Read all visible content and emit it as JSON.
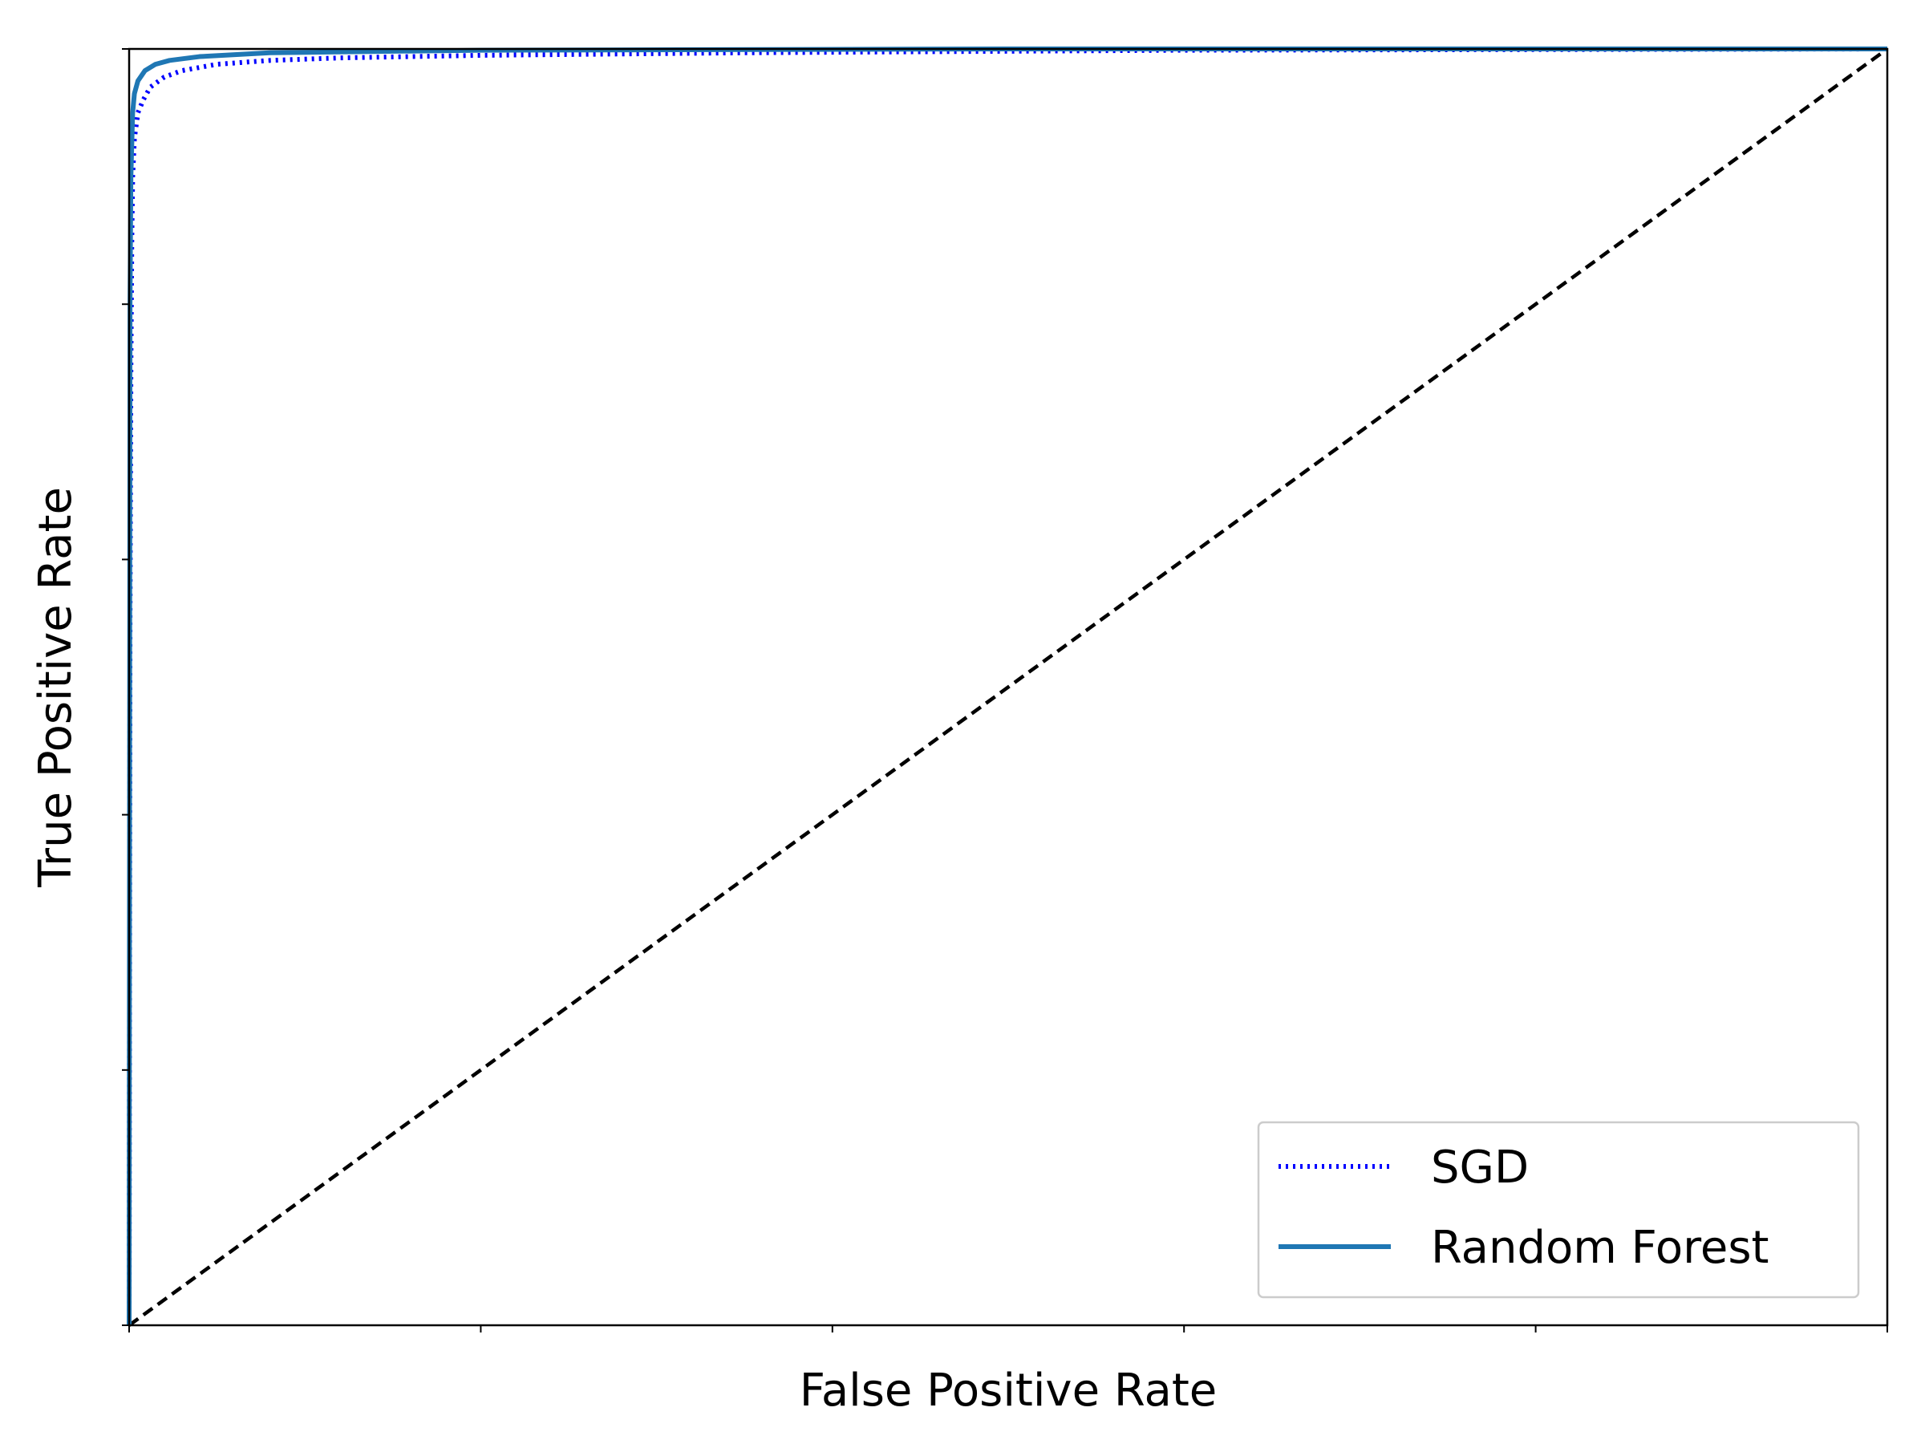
{
  "chart_data": {
    "type": "line",
    "title": "",
    "xlabel": "False Positive Rate",
    "ylabel": "True Positive Rate",
    "xlim": [
      0,
      1
    ],
    "ylim": [
      0,
      1
    ],
    "xticks": [
      0,
      0.2,
      0.4,
      0.6,
      0.8,
      1.0
    ],
    "yticks": [
      0,
      0.2,
      0.4,
      0.6,
      0.8,
      1.0
    ],
    "tick_labels_visible": false,
    "grid": false,
    "legend_position": "lower-right",
    "series": [
      {
        "name": "SGD",
        "style": "dotted",
        "color": "#0000ff",
        "x": [
          0,
          0.0005,
          0.001,
          0.0015,
          0.002,
          0.003,
          0.005,
          0.008,
          0.012,
          0.02,
          0.03,
          0.05,
          0.08,
          0.12,
          0.2,
          0.35,
          0.6,
          1.0
        ],
        "y": [
          0,
          0.55,
          0.75,
          0.85,
          0.9,
          0.93,
          0.95,
          0.96,
          0.97,
          0.978,
          0.983,
          0.988,
          0.991,
          0.993,
          0.995,
          0.997,
          0.999,
          1.0
        ]
      },
      {
        "name": "Random Forest",
        "style": "solid",
        "color": "#1f77b4",
        "x": [
          0,
          0.0005,
          0.001,
          0.002,
          0.003,
          0.005,
          0.009,
          0.015,
          0.023,
          0.04,
          0.08,
          0.2,
          0.5,
          1.0
        ],
        "y": [
          0,
          0.8,
          0.9,
          0.95,
          0.965,
          0.975,
          0.983,
          0.988,
          0.991,
          0.994,
          0.997,
          0.999,
          1.0,
          1.0
        ]
      },
      {
        "name": "",
        "style": "dashed",
        "color": "#000000",
        "x": [
          0,
          1
        ],
        "y": [
          0,
          1
        ]
      }
    ]
  }
}
